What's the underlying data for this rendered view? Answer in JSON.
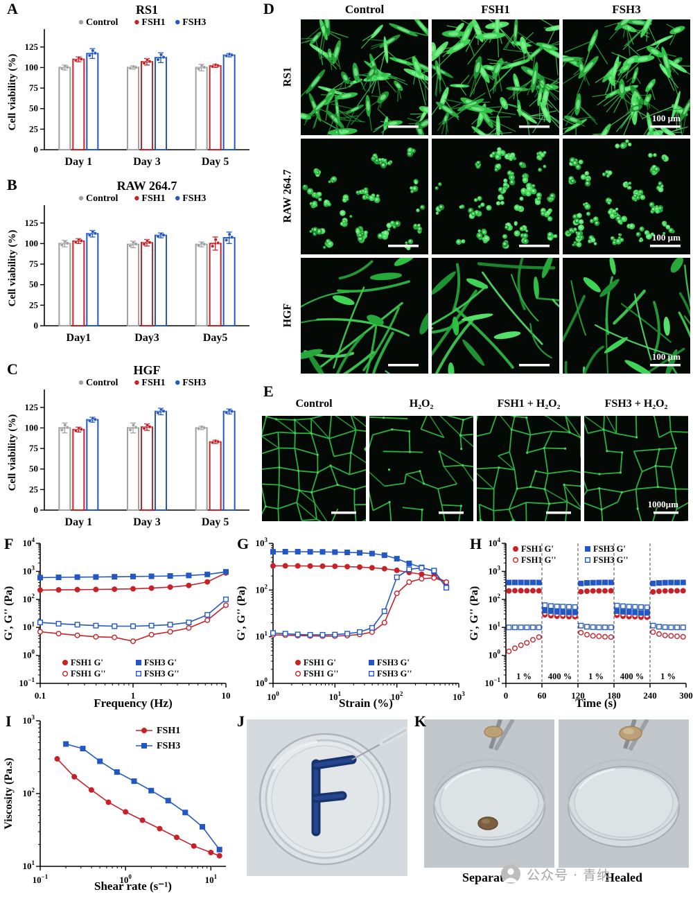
{
  "panels": {
    "A": {
      "letter": "A"
    },
    "B": {
      "letter": "B"
    },
    "C": {
      "letter": "C"
    },
    "D": {
      "letter": "D",
      "cols": [
        "Control",
        "FSH1",
        "FSH3"
      ],
      "rows": [
        "RS1",
        "RAW 264.7",
        "HGF"
      ],
      "scale_label": "100 µm"
    },
    "E": {
      "letter": "E",
      "labels": [
        "Control",
        "H₂O₂",
        "FSH1 + H₂O₂",
        "FSH3 + H₂O₂"
      ],
      "scale_label": "1000µm"
    },
    "F": {
      "letter": "F"
    },
    "G": {
      "letter": "G"
    },
    "H": {
      "letter": "H"
    },
    "I": {
      "letter": "I"
    },
    "J": {
      "letter": "J"
    },
    "K": {
      "letter": "K",
      "labels": [
        "Separated",
        "Healed"
      ]
    }
  },
  "watermark": {
    "text": "公众号 · 青纳"
  },
  "chart_data": [
    {
      "id": "A",
      "type": "bar",
      "title": "RS1",
      "ylabel": "Cell viability (%)",
      "categories": [
        "Day 1",
        "Day 3",
        "Day 5"
      ],
      "ylim": [
        0,
        140
      ],
      "yticks": [
        0,
        25,
        50,
        75,
        100,
        125
      ],
      "series": [
        {
          "name": "Control",
          "color": "#a0a0a0",
          "values": [
            100,
            100,
            100
          ],
          "errors": [
            3,
            2,
            4
          ]
        },
        {
          "name": "FSH1",
          "color": "#c92128",
          "values": [
            110,
            107,
            102
          ],
          "errors": [
            3,
            4,
            2
          ]
        },
        {
          "name": "FSH3",
          "color": "#2257c4",
          "values": [
            117,
            112,
            115
          ],
          "errors": [
            6,
            6,
            2
          ]
        }
      ]
    },
    {
      "id": "B",
      "type": "bar",
      "title": "RAW 264.7",
      "ylabel": "Cell viability (%)",
      "categories": [
        "Day1",
        "Day3",
        "Day5"
      ],
      "ylim": [
        0,
        140
      ],
      "yticks": [
        0,
        25,
        50,
        75,
        100,
        125
      ],
      "series": [
        {
          "name": "Control",
          "color": "#a0a0a0",
          "values": [
            100,
            99,
            99
          ],
          "errors": [
            4,
            4,
            3
          ]
        },
        {
          "name": "FSH1",
          "color": "#c92128",
          "values": [
            103,
            101,
            100
          ],
          "errors": [
            3,
            4,
            8
          ]
        },
        {
          "name": "FSH3",
          "color": "#2257c4",
          "values": [
            112,
            110,
            107
          ],
          "errors": [
            4,
            3,
            7
          ]
        }
      ]
    },
    {
      "id": "C",
      "type": "bar",
      "title": "HGF",
      "ylabel": "Cell viability (%)",
      "categories": [
        "Day 1",
        "Day 3",
        "Day 5"
      ],
      "ylim": [
        0,
        140
      ],
      "yticks": [
        0,
        25,
        50,
        75,
        100,
        125
      ],
      "series": [
        {
          "name": "Control",
          "color": "#a0a0a0",
          "values": [
            100,
            100,
            100
          ],
          "errors": [
            6,
            6,
            2
          ]
        },
        {
          "name": "FSH1",
          "color": "#c92128",
          "values": [
            98,
            101,
            83
          ],
          "errors": [
            3,
            4,
            2
          ]
        },
        {
          "name": "FSH3",
          "color": "#2257c4",
          "values": [
            110,
            120,
            120
          ],
          "errors": [
            3,
            4,
            3
          ]
        }
      ]
    },
    {
      "id": "F",
      "type": "line",
      "xscale": "log",
      "xtickformat": "plain",
      "xlim": [
        0.1,
        10
      ],
      "ylim": [
        0.1,
        10000
      ],
      "xlabel": "Frequency (Hz)",
      "ylabel": "G', G'' (Pa)",
      "legend": {
        "pos": "bottom2"
      },
      "x": [
        0.1,
        0.158,
        0.251,
        0.398,
        0.631,
        1,
        1.58,
        2.51,
        3.98,
        6.31,
        10
      ],
      "series": [
        {
          "name": "FSH1 G'",
          "color": "#c92128",
          "marker": "circle",
          "filled": true,
          "y": [
            215,
            218,
            222,
            226,
            231,
            238,
            252,
            275,
            315,
            420,
            880
          ]
        },
        {
          "name": "FSH1 G''",
          "color": "#c92128",
          "marker": "circle",
          "filled": false,
          "y": [
            7,
            6,
            5.2,
            4.6,
            4.4,
            3.2,
            5.5,
            7,
            9.5,
            18,
            62
          ]
        },
        {
          "name": "FSH3 G'",
          "color": "#2257c4",
          "marker": "square",
          "filled": true,
          "y": [
            600,
            612,
            622,
            632,
            642,
            655,
            668,
            688,
            715,
            780,
            960
          ]
        },
        {
          "name": "FSH3 G''",
          "color": "#2257c4",
          "marker": "square",
          "filled": false,
          "y": [
            15,
            13.5,
            12.5,
            11.5,
            11,
            11,
            11.5,
            12.5,
            15,
            28,
            100
          ]
        }
      ]
    },
    {
      "id": "G",
      "type": "line",
      "xscale": "log",
      "xtickformat": "pow",
      "xlim": [
        1,
        1000
      ],
      "ylim": [
        1,
        1000
      ],
      "xlabel": "Strain (%)",
      "ylabel": "G', G'' (Pa)",
      "legend": {
        "pos": "bottom2"
      },
      "x": [
        1,
        1.58,
        2.51,
        3.98,
        6.31,
        10,
        15.8,
        25.1,
        39.8,
        63.1,
        100,
        158,
        251,
        398,
        631
      ],
      "series": [
        {
          "name": "FSH1 G'",
          "color": "#c92128",
          "marker": "circle",
          "filled": true,
          "y": [
            330,
            330,
            329,
            327,
            325,
            322,
            317,
            310,
            300,
            286,
            264,
            238,
            218,
            200,
            148
          ]
        },
        {
          "name": "FSH1 G''",
          "color": "#c92128",
          "marker": "circle",
          "filled": false,
          "y": [
            11,
            10.8,
            10.6,
            10.4,
            10.3,
            10.3,
            10.6,
            11.2,
            12.5,
            20,
            85,
            148,
            175,
            182,
            148
          ]
        },
        {
          "name": "FSH3 G'",
          "color": "#2257c4",
          "marker": "square",
          "filled": true,
          "y": [
            660,
            663,
            663,
            660,
            656,
            650,
            641,
            628,
            604,
            558,
            470,
            372,
            305,
            252,
            115
          ]
        },
        {
          "name": "FSH3 G''",
          "color": "#2257c4",
          "marker": "square",
          "filled": false,
          "y": [
            12,
            11.6,
            11.2,
            11,
            11,
            11.1,
            11.6,
            12.6,
            15.5,
            35,
            188,
            278,
            298,
            262,
            112
          ]
        }
      ]
    },
    {
      "id": "H",
      "type": "line",
      "xscale": "lin",
      "xlim": [
        0,
        300
      ],
      "xticks": [
        0,
        60,
        120,
        180,
        240,
        300
      ],
      "ylim": [
        0.1,
        10000
      ],
      "xlabel": "Time (s)",
      "ylabel": "G', G'' (Pa)",
      "legend": {
        "pos": "top2"
      },
      "vlines": [
        60,
        120,
        180,
        240
      ],
      "zone_labels": [
        {
          "x": 30,
          "text": "1 %"
        },
        {
          "x": 90,
          "text": "400 %"
        },
        {
          "x": 150,
          "text": "1 %"
        },
        {
          "x": 210,
          "text": "400 %"
        },
        {
          "x": 270,
          "text": "1 %"
        }
      ],
      "x": [
        5,
        15,
        25,
        35,
        45,
        55,
        65,
        75,
        85,
        95,
        105,
        115,
        125,
        135,
        145,
        155,
        165,
        175,
        185,
        195,
        205,
        215,
        225,
        235,
        245,
        255,
        265,
        275,
        285,
        295
      ],
      "series": [
        {
          "name": "FSH1 G'",
          "color": "#c92128",
          "marker": "circle",
          "filled": true,
          "line": false,
          "y": [
            200,
            205,
            204,
            203,
            204,
            203,
            28,
            26,
            25,
            25,
            24,
            24,
            188,
            196,
            200,
            202,
            202,
            203,
            27,
            25,
            24,
            24,
            23,
            23,
            185,
            195,
            200,
            202,
            203,
            203
          ]
        },
        {
          "name": "FSH1 G''",
          "color": "#c92128",
          "marker": "circle",
          "filled": false,
          "line": false,
          "y": [
            1.4,
            1.8,
            2.3,
            2.8,
            3.6,
            4.5,
            32,
            30,
            29,
            28,
            28,
            27,
            6.5,
            5.5,
            5,
            4.8,
            4.6,
            4.5,
            31,
            29,
            28,
            27,
            27,
            26,
            6.8,
            5.8,
            5.2,
            5,
            4.8,
            4.6
          ]
        },
        {
          "name": "FSH3 G'",
          "color": "#2257c4",
          "marker": "square",
          "filled": true,
          "line": false,
          "y": [
            400,
            402,
            401,
            400,
            401,
            400,
            40,
            38,
            36,
            35,
            34,
            34,
            372,
            388,
            396,
            400,
            401,
            401,
            38,
            36,
            35,
            34,
            33,
            33,
            370,
            386,
            395,
            399,
            400,
            401
          ]
        },
        {
          "name": "FSH3 G''",
          "color": "#2257c4",
          "marker": "square",
          "filled": false,
          "line": false,
          "y": [
            10,
            10,
            10,
            10,
            10,
            10,
            62,
            58,
            56,
            55,
            54,
            53,
            11.5,
            10.5,
            10.2,
            10,
            10,
            10,
            60,
            57,
            55,
            54,
            53,
            52,
            11.5,
            10.5,
            10.2,
            10,
            10,
            10
          ]
        }
      ]
    },
    {
      "id": "I",
      "type": "line",
      "xscale": "log",
      "xtickformat": "pow",
      "xlim": [
        0.1,
        15
      ],
      "ylim": [
        10,
        1000
      ],
      "xlabel": "Shear rate (s⁻¹)",
      "ylabel": "Viscosity (Pa.s)",
      "legend": {
        "pos": "topright"
      },
      "series": [
        {
          "name": "FSH1",
          "color": "#c92128",
          "marker": "circle",
          "filled": true,
          "x": [
            0.158,
            0.251,
            0.398,
            0.631,
            1,
            1.58,
            2.51,
            3.98,
            6.31,
            10,
            12.6
          ],
          "y": [
            300,
            170,
            112,
            76,
            56,
            43,
            33,
            25,
            19,
            15.5,
            14
          ]
        },
        {
          "name": "FSH3",
          "color": "#2257c4",
          "marker": "square",
          "filled": true,
          "x": [
            0.2,
            0.316,
            0.501,
            0.794,
            1.26,
            2,
            3.16,
            5.01,
            7.94,
            12.6
          ],
          "y": [
            480,
            415,
            278,
            198,
            148,
            110,
            80,
            55,
            35,
            17
          ]
        }
      ]
    }
  ]
}
